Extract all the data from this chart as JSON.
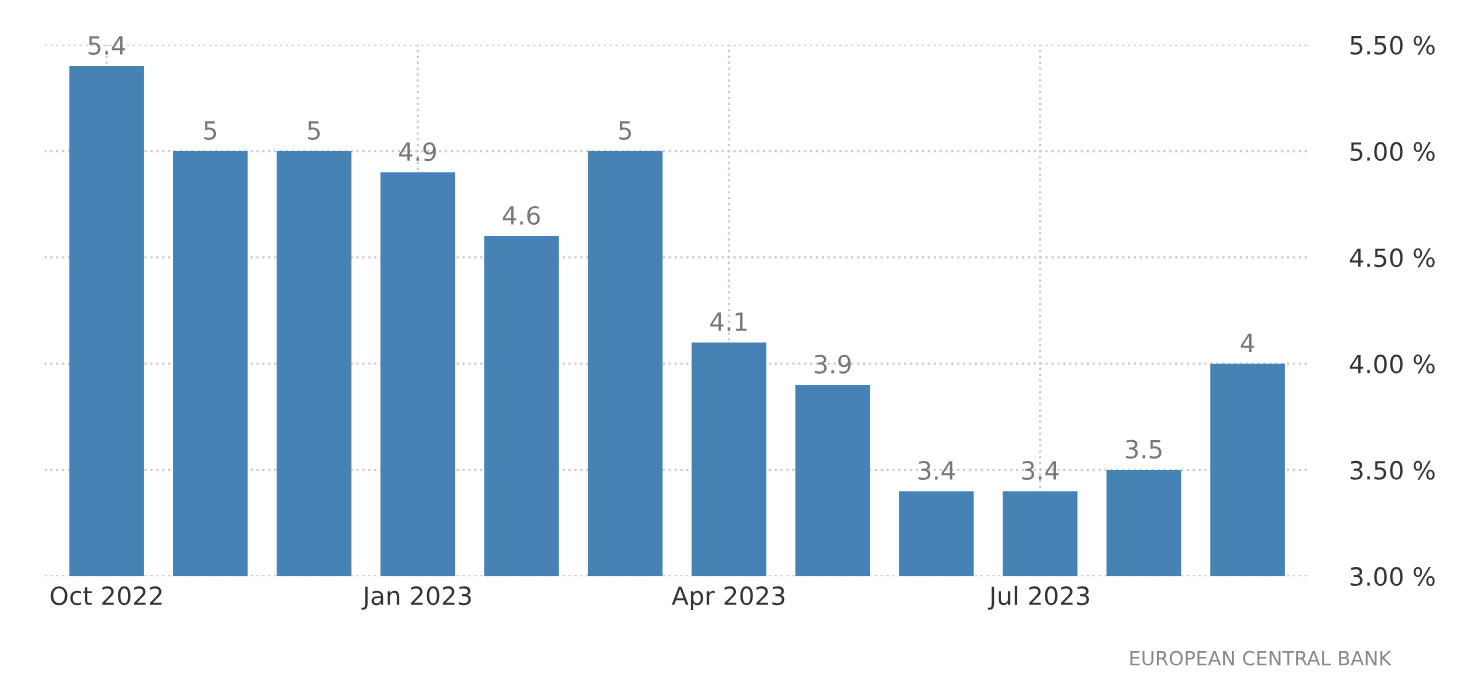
{
  "chart_data": {
    "type": "bar",
    "categories": [
      "Oct 2022",
      null,
      null,
      "Jan 2023",
      null,
      null,
      "Apr 2023",
      null,
      null,
      "Jul 2023",
      null,
      null
    ],
    "values": [
      5.4,
      5,
      5,
      4.9,
      4.6,
      5,
      4.1,
      3.9,
      3.4,
      3.4,
      3.5,
      4
    ],
    "color": "#4682b4",
    "data_labels": true,
    "ylim": [
      3,
      5.5
    ],
    "yticks": [
      {
        "value": 3,
        "label": "3.00 %"
      },
      {
        "value": 3.5,
        "label": "3.50 %"
      },
      {
        "value": 4,
        "label": "4.00 %"
      },
      {
        "value": 4.5,
        "label": "4.50 %"
      },
      {
        "value": 5,
        "label": "5.00 %"
      },
      {
        "value": 5.5,
        "label": "5.50 %"
      }
    ],
    "grid": true,
    "annotations": [
      "EUROPEAN CENTRAL BANK"
    ]
  }
}
